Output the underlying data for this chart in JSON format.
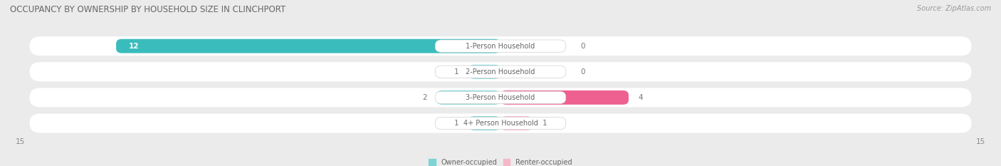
{
  "title": "OCCUPANCY BY OWNERSHIP BY HOUSEHOLD SIZE IN CLINCHPORT",
  "source": "Source: ZipAtlas.com",
  "categories": [
    "1-Person Household",
    "2-Person Household",
    "3-Person Household",
    "4+ Person Household"
  ],
  "owner_values": [
    12,
    1,
    2,
    1
  ],
  "renter_values": [
    0,
    0,
    4,
    1
  ],
  "owner_color": "#3BBCBC",
  "owner_color_light": "#7DD4D4",
  "renter_color_light": "#F5B8C8",
  "renter_color_dark": "#EE6090",
  "bg_color": "#ebebeb",
  "axis_max": 15,
  "legend_owner": "Owner-occupied",
  "legend_renter": "Renter-occupied",
  "title_fontsize": 8.5,
  "source_fontsize": 7,
  "bar_label_fontsize": 7.5,
  "cat_label_fontsize": 7,
  "tick_fontsize": 7.5
}
